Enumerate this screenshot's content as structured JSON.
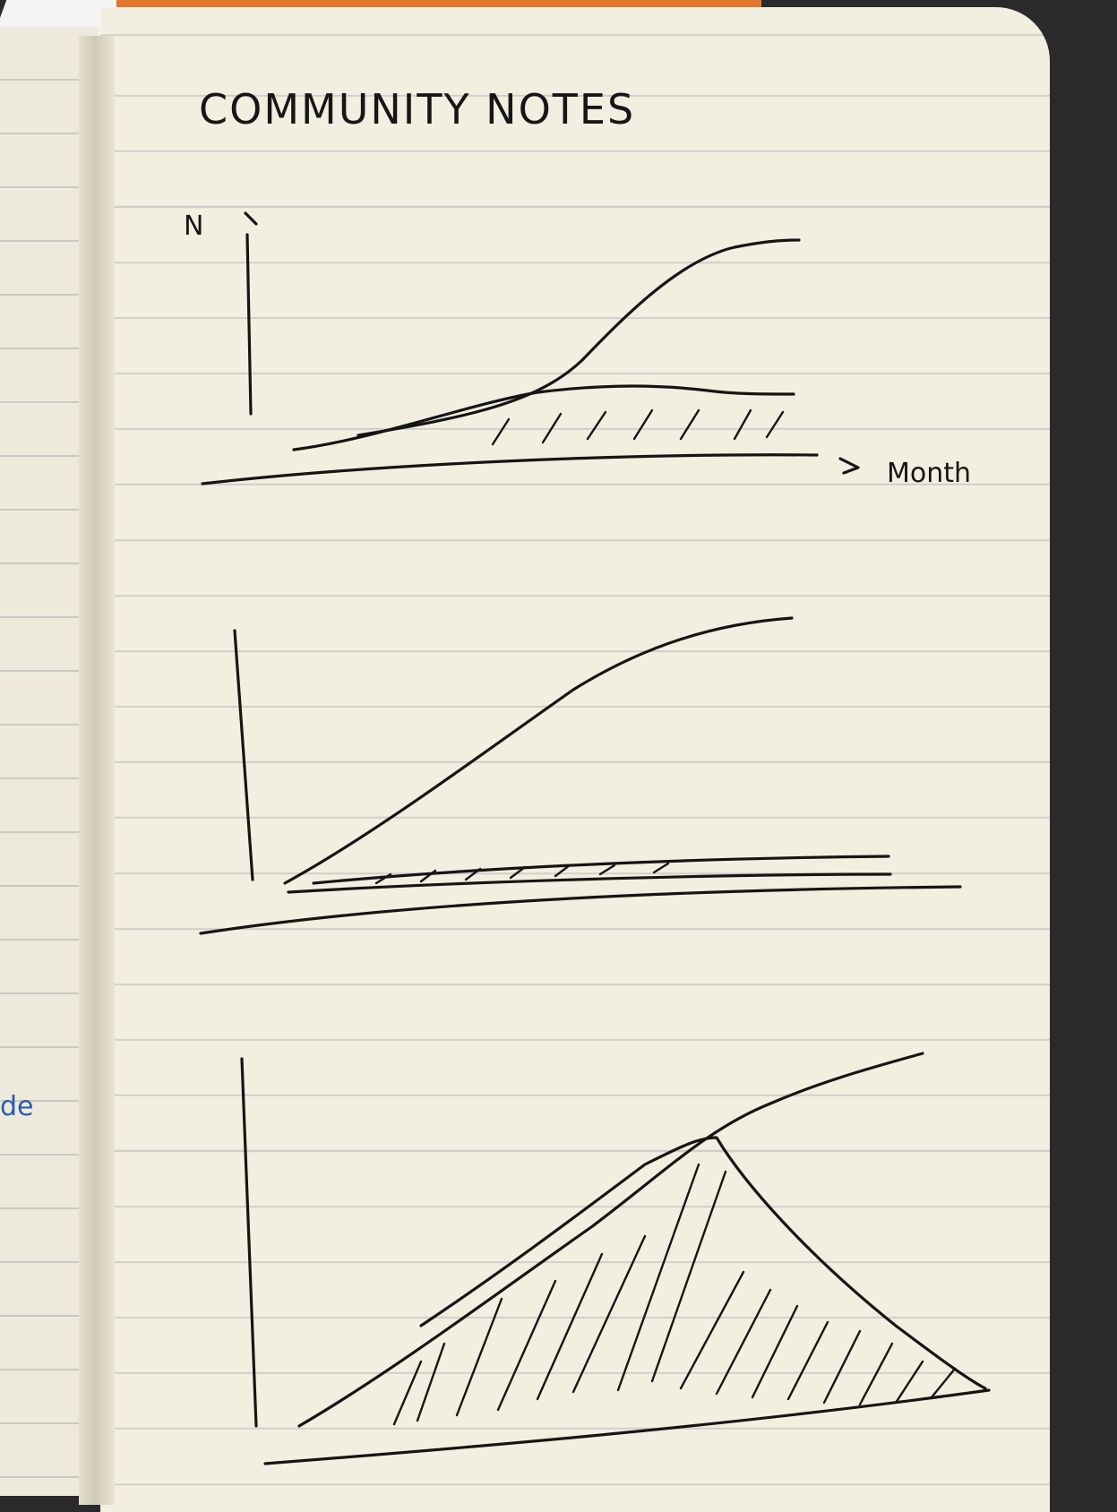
{
  "notebook": {
    "heading": "COMMUNITY NOTES",
    "y_axis_label": "N",
    "x_axis_label": "Month",
    "margin_mark": "de"
  }
}
